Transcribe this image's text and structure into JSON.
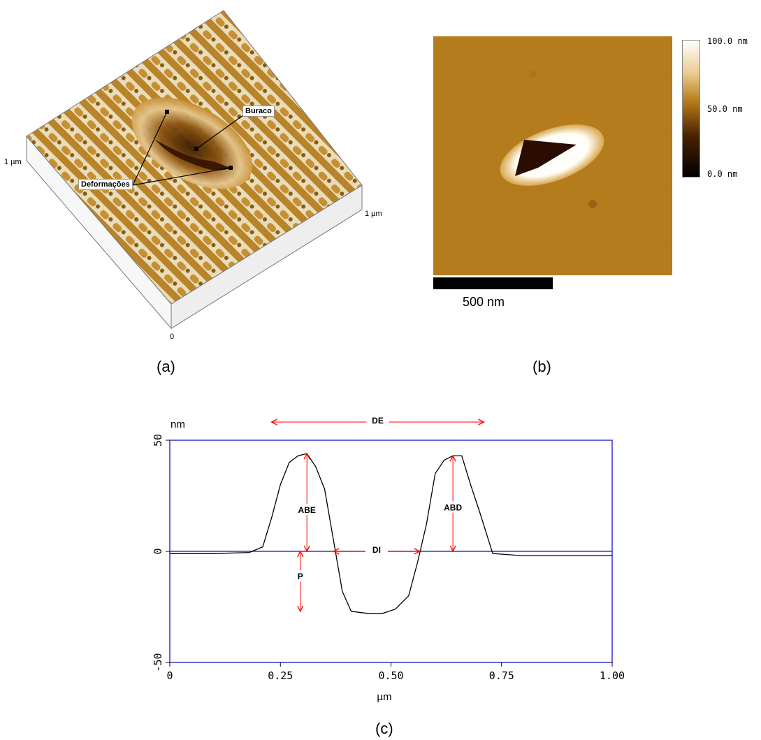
{
  "panel_a": {
    "label": "(a)",
    "axis_left": "1 µm",
    "axis_right": "1 µm",
    "axis_origin": "0",
    "annotations": {
      "hole": "Buraco",
      "deformations": "Deformações"
    }
  },
  "panel_b": {
    "label": "(b)",
    "colorbar": {
      "max": "100.0 nm",
      "mid": "50.0 nm",
      "min": "0.0 nm",
      "colors": [
        "#000000",
        "#4a2200",
        "#b67a1a",
        "#ffffff"
      ]
    },
    "scalebar": "500 nm"
  },
  "panel_c": {
    "label": "(c)",
    "annotations": {
      "DE": "DE",
      "ABE": "ABE",
      "ABD": "ABD",
      "DI": "DI",
      "P": "P"
    },
    "colors": {
      "frame": "#3333cc",
      "profile": "#000000",
      "annotation": "#ff0000"
    }
  },
  "chart_data": {
    "type": "line",
    "ylabel": "nm",
    "xlabel": "µm",
    "xlim": [
      0,
      1.0
    ],
    "ylim": [
      -50,
      50
    ],
    "xticks": [
      "0",
      "0.25",
      "0.50",
      "0.75",
      "1.00"
    ],
    "yticks": [
      "50",
      "0",
      "-50"
    ],
    "series": [
      {
        "x": [
          0,
          0.1,
          0.18,
          0.21,
          0.23,
          0.25,
          0.27,
          0.29,
          0.31,
          0.33,
          0.35,
          0.37,
          0.39,
          0.41,
          0.45,
          0.48,
          0.51,
          0.54,
          0.56,
          0.58,
          0.6,
          0.62,
          0.64,
          0.66,
          0.68,
          0.7,
          0.73,
          0.8,
          0.9,
          1.0
        ],
        "y": [
          -1,
          -1,
          -0.5,
          2,
          15,
          30,
          40,
          43,
          44,
          38,
          28,
          5,
          -18,
          -27,
          -28,
          -28,
          -26,
          -20,
          -5,
          12,
          35,
          41,
          43,
          43,
          30,
          18,
          -1,
          -2,
          -2,
          -2
        ]
      }
    ]
  }
}
